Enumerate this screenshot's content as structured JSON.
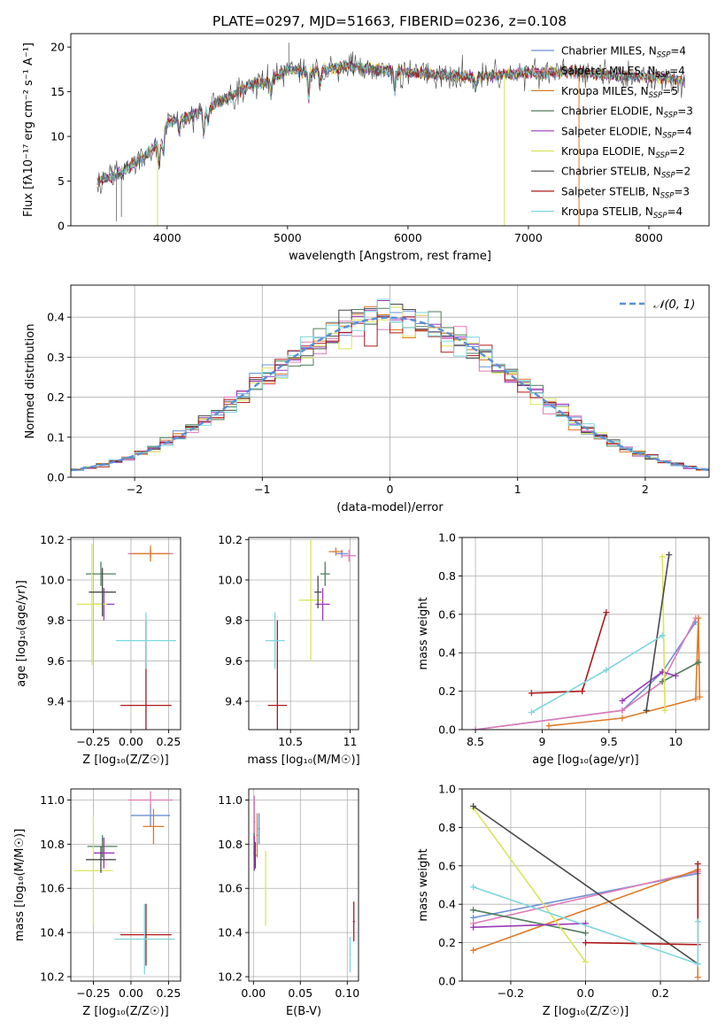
{
  "figure": {
    "title": "PLATE=0297, MJD=51663, FIBERID=0236, z=0.108"
  },
  "models": [
    {
      "name": "Chabrier MILES",
      "nssp": "4",
      "color": "#6a8fd8"
    },
    {
      "name": "Salpeter MILES",
      "nssp": "4",
      "color": "#e07cb8"
    },
    {
      "name": "Kroupa MILES",
      "nssp": "5",
      "color": "#e07a25"
    },
    {
      "name": "Chabrier ELODIE",
      "nssp": "3",
      "color": "#4e7d5b"
    },
    {
      "name": "Salpeter ELODIE",
      "nssp": "4",
      "color": "#9b38b8"
    },
    {
      "name": "Kroupa ELODIE",
      "nssp": "2",
      "color": "#d9e55a"
    },
    {
      "name": "Chabrier STELIB",
      "nssp": "2",
      "color": "#4a4a4a"
    },
    {
      "name": "Salpeter STELIB",
      "nssp": "3",
      "color": "#b01818"
    },
    {
      "name": "Kroupa STELIB",
      "nssp": "4",
      "color": "#7dd6de"
    }
  ],
  "chart_data": [
    {
      "id": "spectrum",
      "type": "line",
      "title": "PLATE=0297, MJD=51663, FIBERID=0236, z=0.108",
      "xlabel": "wavelength [Angstrom, rest frame]",
      "ylabel": "Flux [fλ10⁻¹⁷ erg cm⁻² s⁻¹ A⁻¹]",
      "xlim": [
        3200,
        8500
      ],
      "ylim": [
        0,
        21.5
      ],
      "xticks": [
        4000,
        5000,
        6000,
        7000,
        8000
      ],
      "yticks": [
        0,
        5,
        10,
        15,
        20
      ],
      "legend": "top-right",
      "continuum_x": [
        3420,
        3600,
        3800,
        3950,
        4000,
        4200,
        4300,
        4500,
        4700,
        4860,
        5000,
        5200,
        5500,
        5800,
        6000,
        6300,
        6600,
        7000,
        7300,
        7600,
        8000,
        8300
      ],
      "continuum_y": [
        5,
        5.8,
        7.6,
        9.5,
        11.5,
        12.3,
        12.9,
        14.3,
        15.8,
        16.3,
        17.5,
        17.2,
        17.9,
        17.4,
        17.2,
        16.8,
        16.7,
        17.1,
        17.3,
        16.9,
        16.7,
        16.3
      ],
      "absorption_lines": [
        [
          3934,
          2.5
        ],
        [
          3969,
          2.2
        ],
        [
          4102,
          1.5
        ],
        [
          4304,
          2.8
        ],
        [
          4340,
          1.5
        ],
        [
          4861,
          1.6
        ],
        [
          5175,
          3.2
        ],
        [
          5270,
          1.4
        ],
        [
          5890,
          2.4
        ],
        [
          6563,
          1.2
        ]
      ],
      "spikes": [
        [
          5010,
          20.5
        ],
        [
          3580,
          0.5
        ],
        [
          3620,
          1.0
        ]
      ],
      "extra_features": [
        {
          "model": "Kroupa ELODIE",
          "x": 6800,
          "y": 0
        },
        {
          "model": "Kroupa MILES",
          "x": 7420,
          "y": 0
        },
        {
          "model": "Kroupa ELODIE",
          "x": 3920,
          "y": 0
        }
      ]
    },
    {
      "id": "residuals",
      "type": "histogram",
      "xlabel": "(data-model)/error",
      "ylabel": "Normed distribution",
      "xlim": [
        -2.5,
        2.5
      ],
      "ylim": [
        0,
        0.48
      ],
      "xticks": [
        -2,
        -1,
        0,
        1,
        2
      ],
      "yticks": [
        0.0,
        0.1,
        0.2,
        0.3,
        0.4
      ],
      "bin_width": 0.1,
      "reference": {
        "label": "𝒩(0, 1)",
        "mean": 0,
        "sigma": 1,
        "color": "#5b8fd6"
      },
      "legend": "top-right"
    },
    {
      "id": "age-vs-Z",
      "type": "errorbar",
      "xlabel": "Z [log₁₀(Z/Z☉)]",
      "ylabel": "age  [log₁₀(age/yr)]",
      "xlim": [
        -0.4,
        0.33
      ],
      "ylim": [
        9.26,
        10.21
      ],
      "xticks": [
        -0.25,
        0.0,
        0.25
      ],
      "xticklabels": [
        "−0.25",
        "0.00",
        "0.25"
      ],
      "yticks": [
        9.4,
        9.6,
        9.8,
        10.0,
        10.2
      ],
      "points": [
        {
          "model": "Chabrier MILES",
          "x": 0.13,
          "xerr": 0.15,
          "y": 10.13,
          "yerr": 0.02
        },
        {
          "model": "Salpeter MILES",
          "x": 0.13,
          "xerr": 0.15,
          "y": 10.13,
          "yerr": 0.02
        },
        {
          "model": "Kroupa MILES",
          "x": 0.13,
          "xerr": 0.13,
          "y": 10.13,
          "yerr": 0.04
        },
        {
          "model": "Chabrier ELODIE",
          "x": -0.2,
          "xerr": 0.1,
          "y": 10.03,
          "yerr": 0.06
        },
        {
          "model": "Salpeter ELODIE",
          "x": -0.18,
          "xerr": 0.07,
          "y": 9.88,
          "yerr": 0.08
        },
        {
          "model": "Kroupa ELODIE",
          "x": -0.26,
          "xerr": 0.1,
          "y": 9.88,
          "yerr": 0.3
        },
        {
          "model": "Chabrier STELIB",
          "x": -0.19,
          "xerr": 0.09,
          "y": 9.94,
          "yerr": 0.12
        },
        {
          "model": "Salpeter STELIB",
          "x": 0.1,
          "xerr": 0.17,
          "y": 9.38,
          "yerr": 0.42
        },
        {
          "model": "Kroupa STELIB",
          "x": 0.1,
          "xerr": 0.2,
          "y": 9.7,
          "yerr": 0.14
        }
      ]
    },
    {
      "id": "age-vs-mass",
      "type": "errorbar",
      "xlabel": "mass [log₁₀(M/M☉)]",
      "xlim": [
        10.15,
        11.07
      ],
      "ylim": [
        9.26,
        10.21
      ],
      "xticks": [
        10.5,
        11.0
      ],
      "yticks": [
        9.4,
        9.6,
        9.8,
        10.0,
        10.2
      ],
      "points": [
        {
          "model": "Chabrier MILES",
          "x": 10.93,
          "xerr": 0.05,
          "y": 10.13,
          "yerr": 0.02
        },
        {
          "model": "Salpeter MILES",
          "x": 10.99,
          "xerr": 0.06,
          "y": 10.12,
          "yerr": 0.03
        },
        {
          "model": "Kroupa MILES",
          "x": 10.88,
          "xerr": 0.06,
          "y": 10.14,
          "yerr": 0.02
        },
        {
          "model": "Chabrier ELODIE",
          "x": 10.79,
          "xerr": 0.04,
          "y": 10.03,
          "yerr": 0.06
        },
        {
          "model": "Salpeter ELODIE",
          "x": 10.77,
          "xerr": 0.06,
          "y": 9.88,
          "yerr": 0.08
        },
        {
          "model": "Kroupa ELODIE",
          "x": 10.67,
          "xerr": 0.1,
          "y": 9.9,
          "yerr": 0.3
        },
        {
          "model": "Chabrier STELIB",
          "x": 10.73,
          "xerr": 0.03,
          "y": 9.94,
          "yerr": 0.08
        },
        {
          "model": "Salpeter STELIB",
          "x": 10.39,
          "xerr": 0.08,
          "y": 9.38,
          "yerr": 0.42
        },
        {
          "model": "Kroupa STELIB",
          "x": 10.37,
          "xerr": 0.08,
          "y": 9.7,
          "yerr": 0.14
        }
      ]
    },
    {
      "id": "weight-vs-age",
      "type": "line",
      "xlabel": "age  [log₁₀(age/yr)]",
      "ylabel": "mass weight",
      "xlim": [
        8.4,
        10.25
      ],
      "ylim": [
        0,
        1
      ],
      "xticks": [
        8.5,
        9.0,
        9.5,
        10.0
      ],
      "yticks": [
        0.0,
        0.2,
        0.4,
        0.6,
        0.8,
        1.0
      ],
      "series": [
        {
          "model": "Chabrier MILES",
          "x": [
            8.5,
            9.6,
            9.9,
            10.15
          ],
          "y": [
            0.0,
            0.1,
            0.3,
            0.56
          ]
        },
        {
          "model": "Salpeter MILES",
          "x": [
            8.5,
            9.6,
            9.9,
            10.15
          ],
          "y": [
            0.0,
            0.1,
            0.25,
            0.58
          ]
        },
        {
          "model": "Kroupa MILES",
          "x": [
            9.05,
            9.6,
            10.15,
            10.17,
            10.18
          ],
          "y": [
            0.02,
            0.06,
            0.16,
            0.58,
            0.17
          ]
        },
        {
          "model": "Chabrier ELODIE",
          "x": [
            9.9,
            10.17
          ],
          "y": [
            0.25,
            0.35
          ]
        },
        {
          "model": "Salpeter ELODIE",
          "x": [
            9.6,
            9.9,
            10.0
          ],
          "y": [
            0.15,
            0.3,
            0.28
          ]
        },
        {
          "model": "Kroupa ELODIE",
          "x": [
            9.9,
            9.92
          ],
          "y": [
            0.9,
            0.1
          ]
        },
        {
          "model": "Chabrier STELIB",
          "x": [
            9.78,
            9.95
          ],
          "y": [
            0.1,
            0.91
          ]
        },
        {
          "model": "Salpeter STELIB",
          "x": [
            8.92,
            9.3,
            9.48
          ],
          "y": [
            0.19,
            0.2,
            0.61
          ]
        },
        {
          "model": "Kroupa STELIB",
          "x": [
            8.92,
            9.48,
            9.9
          ],
          "y": [
            0.09,
            0.31,
            0.49
          ]
        }
      ]
    },
    {
      "id": "mass-vs-Z",
      "type": "errorbar",
      "xlabel": "Z [log₁₀(Z/Z☉)]",
      "ylabel": "mass [log₁₀(M/M☉)]",
      "xlim": [
        -0.4,
        0.33
      ],
      "ylim": [
        10.18,
        11.05
      ],
      "xticks": [
        -0.25,
        0.0,
        0.25
      ],
      "xticklabels": [
        "−0.25",
        "0.00",
        "0.25"
      ],
      "yticks": [
        10.2,
        10.4,
        10.6,
        10.8,
        11.0
      ],
      "points": [
        {
          "model": "Chabrier MILES",
          "x": 0.13,
          "xerr": 0.13,
          "y": 10.93,
          "yerr": 0.05
        },
        {
          "model": "Salpeter MILES",
          "x": 0.13,
          "xerr": 0.15,
          "y": 11.0,
          "yerr": 0.04
        },
        {
          "model": "Kroupa MILES",
          "x": 0.15,
          "xerr": 0.07,
          "y": 10.88,
          "yerr": 0.08
        },
        {
          "model": "Chabrier ELODIE",
          "x": -0.19,
          "xerr": 0.1,
          "y": 10.79,
          "yerr": 0.05
        },
        {
          "model": "Salpeter ELODIE",
          "x": -0.18,
          "xerr": 0.07,
          "y": 10.76,
          "yerr": 0.07
        },
        {
          "model": "Kroupa ELODIE",
          "x": -0.25,
          "xerr": 0.13,
          "y": 10.68,
          "yerr": 0.25
        },
        {
          "model": "Chabrier STELIB",
          "x": -0.2,
          "xerr": 0.1,
          "y": 10.73,
          "yerr": 0.06
        },
        {
          "model": "Salpeter STELIB",
          "x": 0.1,
          "xerr": 0.17,
          "y": 10.39,
          "yerr": 0.14
        },
        {
          "model": "Kroupa STELIB",
          "x": 0.09,
          "xerr": 0.2,
          "y": 10.37,
          "yerr": 0.16
        }
      ]
    },
    {
      "id": "mass-vs-ebv",
      "type": "errorbar",
      "xlabel": "E(B-V)",
      "xlim": [
        -0.005,
        0.112
      ],
      "ylim": [
        10.18,
        11.05
      ],
      "xticks": [
        0.0,
        0.05,
        0.1
      ],
      "xticklabels": [
        "0.00",
        "0.05",
        "0.10"
      ],
      "yticks": [
        10.2,
        10.4,
        10.6,
        10.8,
        11.0
      ],
      "points": [
        {
          "model": "Chabrier MILES",
          "x": 0.006,
          "xerr": 0.001,
          "y": 10.87,
          "yerr": 0.07
        },
        {
          "model": "Salpeter MILES",
          "x": 0.001,
          "xerr": 0.001,
          "y": 10.9,
          "yerr": 0.12
        },
        {
          "model": "Kroupa MILES",
          "x": 0.004,
          "xerr": 0.001,
          "y": 10.84,
          "yerr": 0.1
        },
        {
          "model": "Chabrier ELODIE",
          "x": 0.001,
          "xerr": 0.001,
          "y": 10.79,
          "yerr": 0.06
        },
        {
          "model": "Salpeter ELODIE",
          "x": 0.001,
          "xerr": 0.001,
          "y": 10.76,
          "yerr": 0.08
        },
        {
          "model": "Kroupa ELODIE",
          "x": 0.013,
          "xerr": 0.001,
          "y": 10.6,
          "yerr": 0.17
        },
        {
          "model": "Chabrier STELIB",
          "x": 0.002,
          "xerr": 0.001,
          "y": 10.75,
          "yerr": 0.06
        },
        {
          "model": "Salpeter STELIB",
          "x": 0.107,
          "xerr": 0.001,
          "y": 10.45,
          "yerr": 0.09
        },
        {
          "model": "Kroupa STELIB",
          "x": 0.103,
          "xerr": 0.001,
          "y": 10.3,
          "yerr": 0.08
        }
      ]
    },
    {
      "id": "weight-vs-Z",
      "type": "line",
      "xlabel": "Z [log₁₀(Z/Z☉)]",
      "ylabel": "mass weight",
      "xlim": [
        -0.33,
        0.33
      ],
      "ylim": [
        0,
        1
      ],
      "xticks": [
        -0.2,
        0.0,
        0.2
      ],
      "xticklabels": [
        "−0.2",
        "0.0",
        "0.2"
      ],
      "yticks": [
        0.0,
        0.2,
        0.4,
        0.6,
        0.8,
        1.0
      ],
      "series": [
        {
          "model": "Chabrier MILES",
          "x": [
            -0.3,
            0.3
          ],
          "y": [
            0.33,
            0.56
          ]
        },
        {
          "model": "Salpeter MILES",
          "x": [
            -0.3,
            0.3
          ],
          "y": [
            0.3,
            0.57
          ]
        },
        {
          "model": "Kroupa MILES",
          "x": [
            -0.3,
            0.3,
            0.3
          ],
          "y": [
            0.16,
            0.58,
            0.02
          ]
        },
        {
          "model": "Chabrier ELODIE",
          "x": [
            -0.3,
            0.0
          ],
          "y": [
            0.37,
            0.25
          ]
        },
        {
          "model": "Salpeter ELODIE",
          "x": [
            -0.3,
            0.0
          ],
          "y": [
            0.28,
            0.3
          ]
        },
        {
          "model": "Kroupa ELODIE",
          "x": [
            -0.3,
            0.0
          ],
          "y": [
            0.9,
            0.1
          ]
        },
        {
          "model": "Chabrier STELIB",
          "x": [
            -0.3,
            0.3
          ],
          "y": [
            0.91,
            0.09
          ]
        },
        {
          "model": "Salpeter STELIB",
          "x": [
            0.0,
            0.3,
            0.3
          ],
          "y": [
            0.2,
            0.19,
            0.61
          ]
        },
        {
          "model": "Kroupa STELIB",
          "x": [
            -0.3,
            0.3,
            0.3
          ],
          "y": [
            0.49,
            0.09,
            0.31
          ]
        }
      ]
    }
  ]
}
